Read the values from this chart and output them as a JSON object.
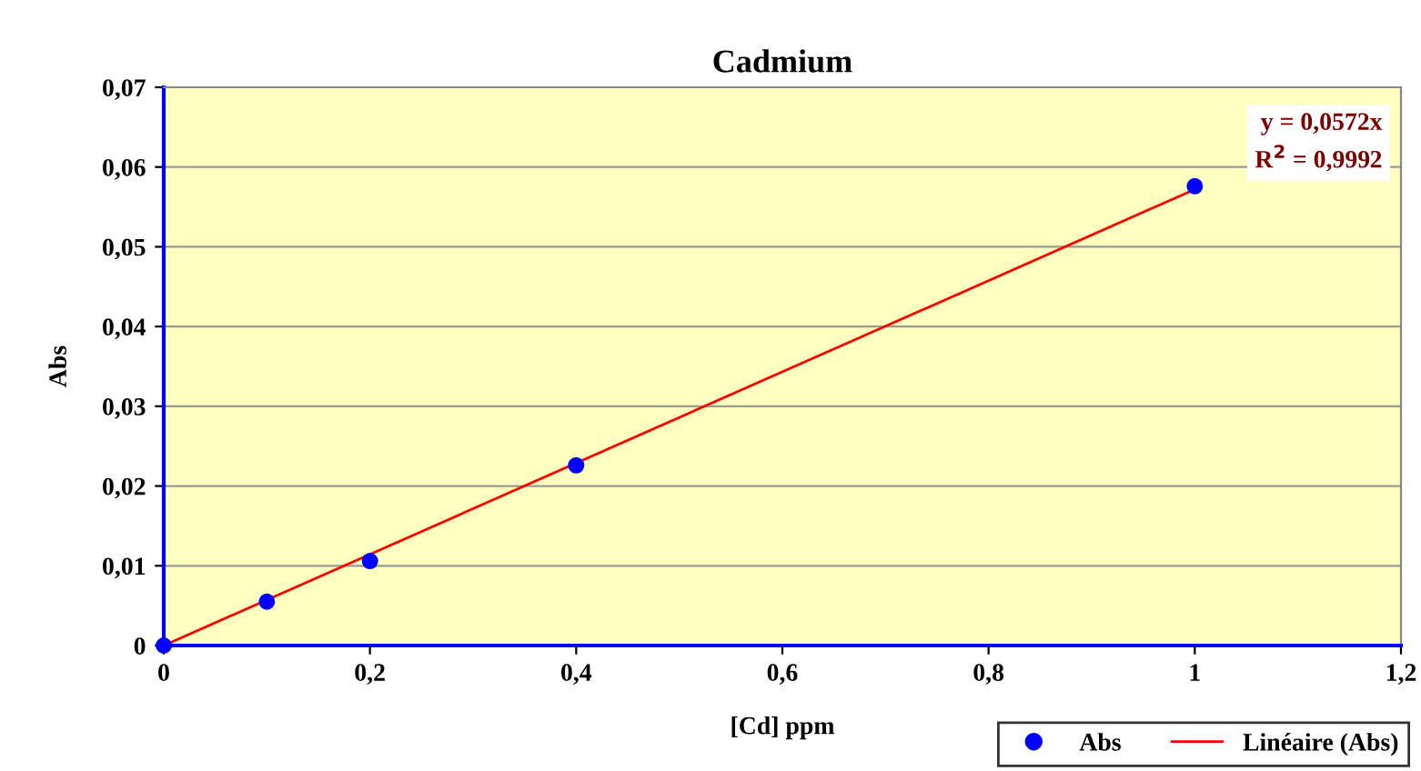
{
  "chart_data": {
    "type": "scatter",
    "title": "Cadmium",
    "xlabel": "[Cd] ppm",
    "ylabel": "Abs",
    "series": [
      {
        "name": "Abs",
        "color": "#0000ff",
        "x": [
          0,
          0.1,
          0.2,
          0.4,
          1
        ],
        "values": [
          0,
          0.0055,
          0.0106,
          0.0226,
          0.0576
        ],
        "marker": "circle"
      },
      {
        "name": "Linéaire (Abs)",
        "type": "line",
        "color": "#ff0000",
        "x": [
          0,
          1
        ],
        "values": [
          0,
          0.0572
        ],
        "marker": "none",
        "line_style": "solid"
      }
    ],
    "xlim": [
      0,
      1.2
    ],
    "ylim": [
      0,
      0.07
    ],
    "xticks": [
      0,
      {
        "value": 0.2,
        "label": "0,2"
      },
      {
        "value": 0.4,
        "label": "0,4"
      },
      {
        "value": 0.6,
        "label": "0,6"
      },
      {
        "value": 0.8,
        "label": "0,8"
      },
      1,
      {
        "value": 1.2,
        "label": "1,2"
      }
    ],
    "yticks": [
      0,
      {
        "value": 0.01,
        "label": "0,01"
      },
      {
        "value": 0.02,
        "label": "0,02"
      },
      {
        "value": 0.03,
        "label": "0,03"
      },
      {
        "value": 0.04,
        "label": "0,04"
      },
      {
        "value": 0.05,
        "label": "0,05"
      },
      {
        "value": 0.06,
        "label": "0,06"
      },
      {
        "value": 0.07,
        "label": "0,07"
      }
    ],
    "annotations": [
      "y = 0,0572x",
      "R$^{2}$ = 0,9992"
    ],
    "grid": "y",
    "legend": "bottom right"
  }
}
